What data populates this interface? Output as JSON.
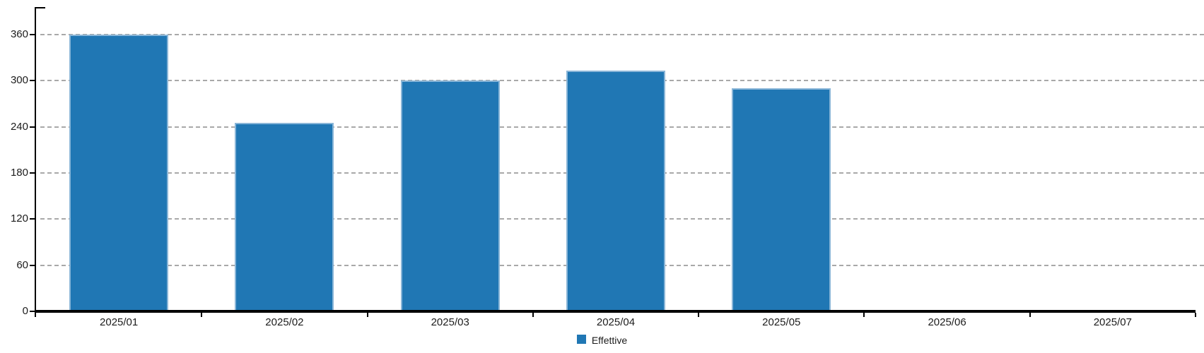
{
  "legend": {
    "items": [
      {
        "label": "Effettive",
        "swatch_color": "#2077b4"
      }
    ],
    "position": "bottom-center"
  },
  "chart_data": {
    "type": "bar",
    "title": "",
    "xlabel": "",
    "ylabel": "",
    "categories": [
      "2025/01",
      "2025/02",
      "2025/03",
      "2025/04",
      "2025/05",
      "2025/06",
      "2025/07"
    ],
    "series": [
      {
        "name": "Effettive",
        "values": [
          360,
          245,
          300,
          313,
          290,
          0,
          0
        ]
      }
    ],
    "ylim": [
      0,
      396
    ],
    "yticks": [
      0,
      60,
      120,
      180,
      240,
      300,
      360
    ],
    "grid": "horizontal-dashed",
    "legend_position": "bottom-center",
    "colors": {
      "bar_fill": "#2077b4",
      "bar_border": "#8ab6d8",
      "gridline": "#a9a9a9",
      "axis": "#000000",
      "text": "#1c1c1c"
    }
  }
}
